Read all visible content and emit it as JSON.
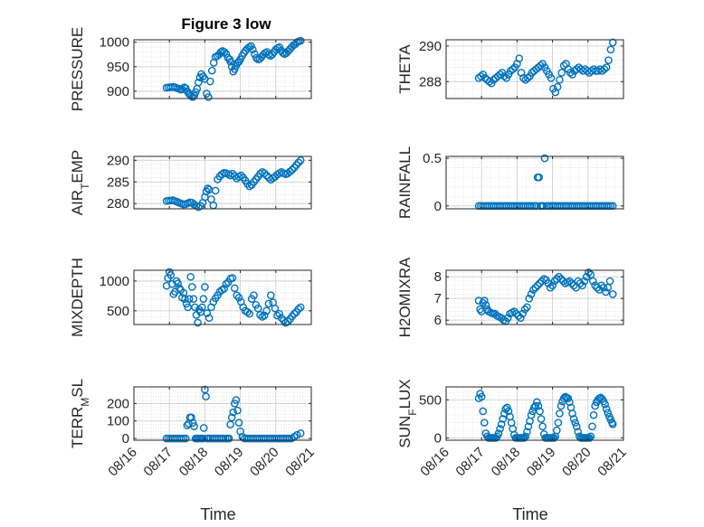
{
  "figure": {
    "title": "Figure 3 low",
    "background": "#ffffff",
    "marker_color": "#0072BD"
  },
  "chart_data": [
    {
      "type": "scatter",
      "title": "Figure 3 low",
      "ylabel": "PRESSURE",
      "xlim": [
        "08/16",
        "08/21"
      ],
      "ylim": [
        885,
        1005
      ],
      "yticks": [
        900,
        950,
        1000
      ],
      "xticklabels": [],
      "grid": true,
      "x": [
        16.92,
        16.98,
        17.04,
        17.1,
        17.16,
        17.22,
        17.28,
        17.32,
        17.36,
        17.42,
        17.46,
        17.5,
        17.55,
        17.58,
        17.62,
        17.66,
        17.7,
        17.74,
        17.78,
        17.82,
        17.86,
        17.9,
        17.95,
        18.0,
        18.05,
        18.1,
        18.15,
        18.2,
        18.25,
        18.3,
        18.35,
        18.4,
        18.45,
        18.5,
        18.55,
        18.6,
        18.65,
        18.7,
        18.72,
        18.76,
        18.8,
        18.84,
        18.88,
        18.92,
        18.96,
        19.0,
        19.05,
        19.1,
        19.15,
        19.2,
        19.25,
        19.3,
        19.35,
        19.4,
        19.45,
        19.5,
        19.55,
        19.6,
        19.65,
        19.7,
        19.75,
        19.8,
        19.85,
        19.9,
        19.95,
        20.0,
        20.05,
        20.1,
        20.15,
        20.2,
        20.25,
        20.3,
        20.35,
        20.4,
        20.45,
        20.5,
        20.55,
        20.6,
        20.65,
        20.7
      ],
      "y": [
        907,
        908,
        908,
        909,
        908,
        906,
        905,
        903,
        904,
        908,
        906,
        900,
        895,
        893,
        890,
        888,
        891,
        898,
        905,
        918,
        928,
        935,
        930,
        925,
        895,
        888,
        920,
        942,
        958,
        970,
        972,
        975,
        980,
        982,
        980,
        976,
        968,
        965,
        960,
        950,
        940,
        945,
        952,
        958,
        960,
        965,
        972,
        978,
        983,
        987,
        990,
        992,
        985,
        976,
        968,
        965,
        966,
        970,
        975,
        978,
        980,
        975,
        972,
        975,
        980,
        985,
        988,
        990,
        983,
        978,
        976,
        978,
        982,
        986,
        990,
        994,
        996,
        1000,
        1002,
        1003
      ]
    },
    {
      "type": "scatter",
      "ylabel": "THETA",
      "xlim": [
        "08/16",
        "08/21"
      ],
      "ylim": [
        287.05,
        290.35
      ],
      "yticks": [
        288,
        290
      ],
      "xticklabels": [],
      "grid": true,
      "x": [
        16.92,
        16.98,
        17.04,
        17.1,
        17.16,
        17.22,
        17.28,
        17.34,
        17.4,
        17.46,
        17.52,
        17.58,
        17.64,
        17.7,
        17.76,
        17.82,
        17.88,
        17.94,
        18.0,
        18.06,
        18.12,
        18.18,
        18.24,
        18.3,
        18.36,
        18.42,
        18.48,
        18.54,
        18.6,
        18.66,
        18.72,
        18.78,
        18.84,
        18.9,
        18.96,
        19.02,
        19.08,
        19.14,
        19.2,
        19.26,
        19.32,
        19.38,
        19.44,
        19.5,
        19.56,
        19.62,
        19.68,
        19.74,
        19.8,
        19.86,
        19.92,
        19.98,
        20.04,
        20.1,
        20.16,
        20.22,
        20.28,
        20.34,
        20.4,
        20.46,
        20.52,
        20.58,
        20.64,
        20.7
      ],
      "y": [
        288.2,
        288.3,
        288.4,
        288.2,
        288.1,
        288.0,
        287.9,
        288.1,
        288.2,
        288.3,
        288.4,
        288.5,
        288.3,
        288.2,
        288.4,
        288.6,
        288.7,
        288.8,
        289.0,
        289.3,
        288.5,
        288.2,
        288.1,
        288.2,
        288.3,
        288.5,
        288.6,
        288.7,
        288.8,
        288.9,
        289.0,
        288.8,
        288.6,
        288.4,
        288.2,
        287.6,
        287.4,
        287.7,
        288.1,
        288.5,
        288.9,
        289.0,
        288.7,
        288.5,
        288.4,
        288.6,
        288.7,
        288.8,
        288.7,
        288.6,
        288.7,
        288.6,
        288.5,
        288.6,
        288.7,
        288.6,
        288.6,
        288.7,
        288.6,
        288.7,
        288.8,
        289.2,
        289.8,
        290.2
      ]
    },
    {
      "type": "scatter",
      "ylabel": "AIR_TEMP",
      "xlim": [
        "08/16",
        "08/21"
      ],
      "ylim": [
        278.8,
        290.9
      ],
      "yticks": [
        280,
        285,
        290
      ],
      "xticklabels": [],
      "grid": true,
      "x": [
        16.92,
        16.98,
        17.04,
        17.1,
        17.16,
        17.22,
        17.28,
        17.34,
        17.4,
        17.46,
        17.52,
        17.58,
        17.64,
        17.7,
        17.76,
        17.82,
        17.88,
        17.94,
        18.0,
        18.04,
        18.08,
        18.12,
        18.18,
        18.24,
        18.3,
        18.36,
        18.42,
        18.48,
        18.54,
        18.6,
        18.66,
        18.72,
        18.78,
        18.84,
        18.9,
        18.96,
        19.02,
        19.08,
        19.14,
        19.2,
        19.26,
        19.32,
        19.38,
        19.44,
        19.5,
        19.56,
        19.62,
        19.68,
        19.74,
        19.8,
        19.86,
        19.92,
        19.98,
        20.04,
        20.1,
        20.16,
        20.22,
        20.28,
        20.34,
        20.4,
        20.46,
        20.52,
        20.58,
        20.64,
        20.7
      ],
      "y": [
        280.6,
        280.7,
        280.7,
        280.8,
        280.6,
        280.4,
        280.2,
        280.0,
        279.8,
        279.9,
        280.1,
        280.3,
        280.2,
        279.8,
        279.5,
        279.2,
        279.5,
        280.2,
        281.5,
        282.8,
        283.5,
        283.2,
        281.0,
        279.6,
        283.0,
        285.6,
        286.3,
        286.8,
        287.1,
        287.0,
        286.8,
        286.5,
        286.9,
        286.4,
        285.8,
        286.2,
        286.5,
        286.0,
        285.3,
        284.6,
        284.0,
        284.3,
        285.0,
        285.6,
        286.2,
        286.9,
        287.3,
        287.0,
        286.5,
        286.0,
        285.5,
        285.9,
        286.2,
        286.7,
        287.0,
        287.3,
        287.0,
        286.8,
        287.0,
        287.4,
        287.8,
        288.3,
        288.9,
        289.5,
        290.0
      ]
    },
    {
      "type": "scatter",
      "ylabel": "RAINFALL",
      "xlim": [
        "08/16",
        "08/21"
      ],
      "ylim": [
        -0.03,
        0.52
      ],
      "yticks": [
        0,
        0.5
      ],
      "xticklabels": [],
      "grid": true,
      "x": [
        16.92,
        16.98,
        17.04,
        17.1,
        17.16,
        17.22,
        17.28,
        17.34,
        17.4,
        17.46,
        17.52,
        17.58,
        17.64,
        17.7,
        17.76,
        17.82,
        17.88,
        17.94,
        18.0,
        18.06,
        18.12,
        18.18,
        18.24,
        18.3,
        18.36,
        18.42,
        18.48,
        18.54,
        18.58,
        18.62,
        18.66,
        18.7,
        18.74,
        18.78,
        18.84,
        18.9,
        18.96,
        19.02,
        19.08,
        19.14,
        19.2,
        19.26,
        19.32,
        19.38,
        19.44,
        19.5,
        19.56,
        19.62,
        19.68,
        19.74,
        19.8,
        19.86,
        19.92,
        19.98,
        20.04,
        20.1,
        20.16,
        20.22,
        20.28,
        20.34,
        20.4,
        20.46,
        20.52,
        20.58,
        20.64,
        20.7
      ],
      "y": [
        0,
        0,
        0,
        0,
        0,
        0,
        0,
        0,
        0,
        0,
        0,
        0,
        0,
        0,
        0,
        0,
        0,
        0,
        0,
        0,
        0,
        0,
        0,
        0,
        0,
        0,
        0,
        0,
        0.3,
        0.3,
        0,
        0,
        0,
        0.5,
        0,
        0,
        0,
        0,
        0,
        0,
        0,
        0,
        0,
        0,
        0,
        0,
        0,
        0,
        0,
        0,
        0,
        0,
        0,
        0,
        0,
        0,
        0,
        0,
        0,
        0,
        0,
        0,
        0,
        0,
        0,
        0
      ]
    },
    {
      "type": "scatter",
      "ylabel": "MIXDEPTH",
      "xlim": [
        "08/16",
        "08/21"
      ],
      "ylim": [
        270,
        1180
      ],
      "yticks": [
        500,
        1000
      ],
      "xticklabels": [],
      "grid": true,
      "x": [
        16.92,
        16.96,
        17.0,
        17.04,
        17.08,
        17.12,
        17.16,
        17.2,
        17.24,
        17.28,
        17.32,
        17.36,
        17.4,
        17.44,
        17.48,
        17.52,
        17.56,
        17.6,
        17.64,
        17.68,
        17.72,
        17.76,
        17.8,
        17.84,
        17.88,
        17.92,
        17.96,
        18.0,
        18.06,
        18.12,
        18.18,
        18.24,
        18.3,
        18.36,
        18.42,
        18.48,
        18.54,
        18.6,
        18.66,
        18.72,
        18.78,
        18.84,
        18.9,
        18.96,
        19.02,
        19.08,
        19.14,
        19.2,
        19.26,
        19.32,
        19.38,
        19.44,
        19.5,
        19.56,
        19.62,
        19.68,
        19.74,
        19.8,
        19.86,
        19.92,
        19.98,
        20.04,
        20.1,
        20.16,
        20.22,
        20.28,
        20.34,
        20.4,
        20.46,
        20.52,
        20.58,
        20.64,
        20.7
      ],
      "y": [
        920,
        1050,
        1150,
        1100,
        950,
        780,
        820,
        1000,
        960,
        880,
        850,
        720,
        800,
        700,
        620,
        560,
        700,
        1070,
        900,
        700,
        560,
        430,
        300,
        520,
        480,
        560,
        700,
        900,
        460,
        380,
        560,
        650,
        710,
        760,
        820,
        850,
        870,
        950,
        980,
        1040,
        1050,
        880,
        760,
        720,
        650,
        560,
        500,
        480,
        450,
        700,
        760,
        600,
        540,
        430,
        400,
        420,
        500,
        620,
        760,
        640,
        540,
        420,
        450,
        380,
        340,
        300,
        320,
        360,
        410,
        450,
        480,
        530,
        560
      ]
    },
    {
      "type": "scatter",
      "ylabel": "H2OMIXRA",
      "xlim": [
        "08/16",
        "08/21"
      ],
      "ylim": [
        5.8,
        8.3
      ],
      "yticks": [
        6,
        7,
        8
      ],
      "xticklabels": [],
      "grid": true,
      "x": [
        16.92,
        16.96,
        17.0,
        17.04,
        17.08,
        17.12,
        17.16,
        17.2,
        17.26,
        17.32,
        17.38,
        17.44,
        17.5,
        17.56,
        17.62,
        17.68,
        17.74,
        17.8,
        17.86,
        17.92,
        17.98,
        18.04,
        18.1,
        18.16,
        18.22,
        18.28,
        18.34,
        18.4,
        18.46,
        18.52,
        18.58,
        18.64,
        18.7,
        18.76,
        18.82,
        18.88,
        18.94,
        19.0,
        19.06,
        19.12,
        19.18,
        19.24,
        19.3,
        19.36,
        19.42,
        19.48,
        19.54,
        19.6,
        19.66,
        19.72,
        19.78,
        19.84,
        19.9,
        19.96,
        20.02,
        20.08,
        20.14,
        20.2,
        20.26,
        20.32,
        20.38,
        20.44,
        20.5,
        20.56,
        20.62,
        20.7
      ],
      "y": [
        6.9,
        6.5,
        6.4,
        6.8,
        6.9,
        6.7,
        6.5,
        6.4,
        6.35,
        6.3,
        6.3,
        6.2,
        6.15,
        6.1,
        6.0,
        5.95,
        6.1,
        6.3,
        6.35,
        6.4,
        6.3,
        6.2,
        6.1,
        6.3,
        6.5,
        6.6,
        7.0,
        7.2,
        7.4,
        7.5,
        7.6,
        7.7,
        7.8,
        7.9,
        7.85,
        7.7,
        7.5,
        7.6,
        7.8,
        7.9,
        8.0,
        7.9,
        7.8,
        7.7,
        7.75,
        7.8,
        7.7,
        7.6,
        7.5,
        7.8,
        7.7,
        7.6,
        7.8,
        8.0,
        8.2,
        8.1,
        7.8,
        7.6,
        7.5,
        7.4,
        7.6,
        7.5,
        7.3,
        7.5,
        7.8,
        7.2
      ]
    },
    {
      "type": "scatter",
      "ylabel": "TERR_MSL",
      "xlim": [
        "08/16",
        "08/21"
      ],
      "ylim": [
        -10,
        295
      ],
      "yticks": [
        0,
        100,
        200
      ],
      "xticks": [
        16,
        17,
        18,
        19,
        20,
        21
      ],
      "xticklabels": [
        "08/16",
        "08/17",
        "08/18",
        "08/19",
        "08/20",
        "08/21"
      ],
      "xlabel": "Time",
      "grid": true,
      "x": [
        16.92,
        16.98,
        17.04,
        17.1,
        17.16,
        17.22,
        17.28,
        17.34,
        17.4,
        17.46,
        17.5,
        17.54,
        17.58,
        17.62,
        17.66,
        17.7,
        17.74,
        17.78,
        17.82,
        17.86,
        17.9,
        17.94,
        17.97,
        18.0,
        18.03,
        18.06,
        18.1,
        18.16,
        18.22,
        18.28,
        18.34,
        18.4,
        18.46,
        18.52,
        18.58,
        18.64,
        18.68,
        18.72,
        18.76,
        18.8,
        18.84,
        18.88,
        18.92,
        18.96,
        19.0,
        19.06,
        19.12,
        19.18,
        19.24,
        19.3,
        19.36,
        19.42,
        19.48,
        19.54,
        19.6,
        19.66,
        19.72,
        19.78,
        19.84,
        19.9,
        19.96,
        20.02,
        20.08,
        20.14,
        20.2,
        20.26,
        20.32,
        20.38,
        20.44,
        20.52,
        20.6,
        20.7
      ],
      "y": [
        0,
        0,
        0,
        0,
        0,
        0,
        0,
        0,
        0,
        0,
        75,
        85,
        120,
        120,
        90,
        70,
        0,
        0,
        0,
        0,
        0,
        0,
        60,
        280,
        240,
        0,
        0,
        0,
        0,
        0,
        0,
        0,
        0,
        0,
        0,
        0,
        0,
        80,
        120,
        150,
        200,
        220,
        160,
        90,
        40,
        10,
        0,
        0,
        0,
        0,
        0,
        0,
        0,
        0,
        0,
        0,
        0,
        0,
        0,
        0,
        0,
        0,
        0,
        0,
        0,
        0,
        0,
        0,
        0,
        10,
        20,
        30
      ]
    },
    {
      "type": "scatter",
      "ylabel": "SUN_FLUX",
      "xlim": [
        "08/16",
        "08/21"
      ],
      "ylim": [
        -30,
        670
      ],
      "yticks": [
        0,
        500
      ],
      "xticks": [
        16,
        17,
        18,
        19,
        20,
        21
      ],
      "xticklabels": [
        "08/16",
        "08/17",
        "08/18",
        "08/19",
        "08/20",
        "08/21"
      ],
      "xlabel": "Time",
      "grid": true,
      "x": [
        16.92,
        16.96,
        17.0,
        17.04,
        17.08,
        17.12,
        17.16,
        17.2,
        17.24,
        17.28,
        17.32,
        17.36,
        17.4,
        17.44,
        17.48,
        17.52,
        17.56,
        17.6,
        17.64,
        17.68,
        17.72,
        17.76,
        17.8,
        17.84,
        17.88,
        17.92,
        17.96,
        18.0,
        18.04,
        18.08,
        18.12,
        18.16,
        18.2,
        18.24,
        18.28,
        18.32,
        18.36,
        18.4,
        18.44,
        18.48,
        18.52,
        18.56,
        18.6,
        18.64,
        18.68,
        18.72,
        18.76,
        18.8,
        18.84,
        18.88,
        18.92,
        18.96,
        19.0,
        19.04,
        19.08,
        19.12,
        19.16,
        19.2,
        19.24,
        19.28,
        19.32,
        19.36,
        19.4,
        19.44,
        19.48,
        19.52,
        19.56,
        19.6,
        19.64,
        19.68,
        19.72,
        19.76,
        19.8,
        19.84,
        19.88,
        19.92,
        19.96,
        20.0,
        20.04,
        20.08,
        20.12,
        20.16,
        20.2,
        20.24,
        20.28,
        20.32,
        20.36,
        20.4,
        20.44,
        20.48,
        20.52,
        20.56,
        20.6,
        20.64,
        20.68,
        20.7
      ],
      "y": [
        520,
        580,
        540,
        350,
        200,
        60,
        20,
        0,
        0,
        0,
        0,
        0,
        0,
        20,
        60,
        120,
        180,
        250,
        320,
        380,
        400,
        350,
        280,
        200,
        120,
        40,
        0,
        0,
        0,
        0,
        0,
        0,
        0,
        20,
        80,
        150,
        220,
        300,
        350,
        400,
        420,
        470,
        420,
        350,
        250,
        150,
        50,
        0,
        0,
        0,
        0,
        0,
        0,
        0,
        20,
        100,
        200,
        320,
        420,
        480,
        520,
        540,
        530,
        520,
        470,
        400,
        320,
        250,
        200,
        150,
        80,
        20,
        0,
        0,
        0,
        0,
        0,
        0,
        0,
        20,
        150,
        300,
        420,
        470,
        500,
        520,
        530,
        510,
        480,
        440,
        380,
        330,
        280,
        240,
        200,
        180
      ]
    }
  ]
}
